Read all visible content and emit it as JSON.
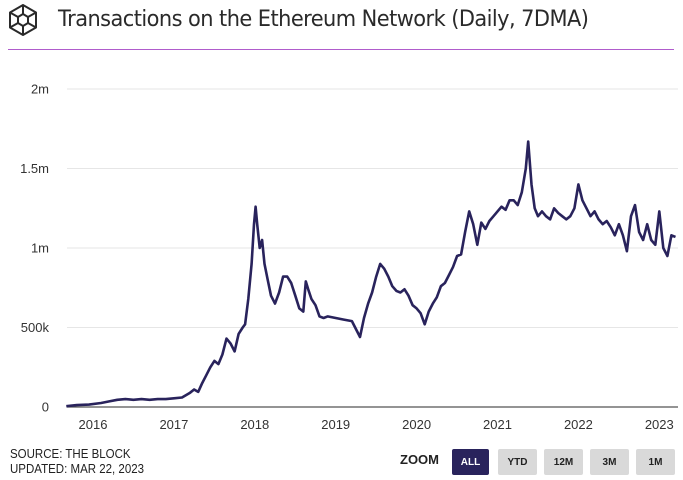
{
  "header": {
    "title": "Transactions on the Ethereum Network (Daily, 7DMA)",
    "logo_icon": "cube-logo-icon",
    "accent_color": "#b05ccc"
  },
  "footer": {
    "source": "SOURCE: THE BLOCK",
    "updated": "UPDATED: MAR 22, 2023"
  },
  "zoom": {
    "label": "ZOOM",
    "buttons": [
      {
        "label": "ALL",
        "active": true
      },
      {
        "label": "YTD",
        "active": false
      },
      {
        "label": "12M",
        "active": false
      },
      {
        "label": "3M",
        "active": false
      },
      {
        "label": "1M",
        "active": false
      }
    ],
    "active_color": "#29235c"
  },
  "chart_data": {
    "type": "line",
    "title": "Transactions on the Ethereum Network (Daily, 7DMA)",
    "xlabel": "",
    "ylabel": "",
    "xlim": [
      2015.67,
      2023.22
    ],
    "ylim": [
      0,
      2000000
    ],
    "grid": true,
    "line_color": "#29235c",
    "y_ticks": [
      {
        "value": 0,
        "label": "0"
      },
      {
        "value": 500000,
        "label": "500k"
      },
      {
        "value": 1000000,
        "label": "1m"
      },
      {
        "value": 1500000,
        "label": "1.5m"
      },
      {
        "value": 2000000,
        "label": "2m"
      }
    ],
    "x_ticks": [
      {
        "value": 2016,
        "label": "2016"
      },
      {
        "value": 2017,
        "label": "2017"
      },
      {
        "value": 2018,
        "label": "2018"
      },
      {
        "value": 2019,
        "label": "2019"
      },
      {
        "value": 2020,
        "label": "2020"
      },
      {
        "value": 2021,
        "label": "2021"
      },
      {
        "value": 2022,
        "label": "2022"
      },
      {
        "value": 2023,
        "label": "2023"
      }
    ],
    "series": [
      {
        "name": "Transactions (7DMA)",
        "x": [
          2015.67,
          2015.8,
          2015.95,
          2016.1,
          2016.2,
          2016.3,
          2016.4,
          2016.5,
          2016.6,
          2016.7,
          2016.8,
          2016.9,
          2017.0,
          2017.1,
          2017.2,
          2017.25,
          2017.3,
          2017.35,
          2017.4,
          2017.45,
          2017.5,
          2017.55,
          2017.6,
          2017.65,
          2017.7,
          2017.75,
          2017.8,
          2017.85,
          2017.88,
          2017.92,
          2017.96,
          2017.99,
          2018.01,
          2018.03,
          2018.06,
          2018.09,
          2018.12,
          2018.16,
          2018.2,
          2018.25,
          2018.3,
          2018.35,
          2018.4,
          2018.45,
          2018.5,
          2018.55,
          2018.6,
          2018.63,
          2018.66,
          2018.7,
          2018.75,
          2018.8,
          2018.85,
          2018.9,
          2019.0,
          2019.1,
          2019.2,
          2019.3,
          2019.35,
          2019.4,
          2019.45,
          2019.5,
          2019.55,
          2019.6,
          2019.65,
          2019.7,
          2019.75,
          2019.8,
          2019.85,
          2019.9,
          2019.95,
          2020.0,
          2020.05,
          2020.1,
          2020.15,
          2020.2,
          2020.25,
          2020.3,
          2020.35,
          2020.4,
          2020.45,
          2020.5,
          2020.55,
          2020.6,
          2020.65,
          2020.7,
          2020.75,
          2020.8,
          2020.85,
          2020.9,
          2020.95,
          2021.0,
          2021.05,
          2021.1,
          2021.15,
          2021.2,
          2021.25,
          2021.3,
          2021.35,
          2021.38,
          2021.42,
          2021.46,
          2021.5,
          2021.55,
          2021.6,
          2021.65,
          2021.7,
          2021.75,
          2021.8,
          2021.85,
          2021.9,
          2021.95,
          2022.0,
          2022.05,
          2022.1,
          2022.15,
          2022.2,
          2022.25,
          2022.3,
          2022.35,
          2022.4,
          2022.45,
          2022.5,
          2022.55,
          2022.6,
          2022.65,
          2022.7,
          2022.75,
          2022.8,
          2022.85,
          2022.9,
          2022.95,
          2023.0,
          2023.05,
          2023.1,
          2023.15,
          2023.2
        ],
        "y": [
          5000,
          12000,
          15000,
          25000,
          35000,
          45000,
          50000,
          45000,
          50000,
          45000,
          50000,
          50000,
          55000,
          60000,
          90000,
          110000,
          95000,
          150000,
          200000,
          250000,
          290000,
          270000,
          330000,
          430000,
          400000,
          350000,
          460000,
          500000,
          520000,
          680000,
          900000,
          1150000,
          1260000,
          1150000,
          1000000,
          1050000,
          900000,
          800000,
          700000,
          650000,
          720000,
          820000,
          820000,
          780000,
          700000,
          620000,
          600000,
          790000,
          740000,
          680000,
          640000,
          570000,
          560000,
          570000,
          560000,
          550000,
          540000,
          440000,
          560000,
          650000,
          720000,
          820000,
          900000,
          870000,
          820000,
          760000,
          730000,
          720000,
          740000,
          700000,
          640000,
          620000,
          590000,
          520000,
          600000,
          650000,
          690000,
          760000,
          780000,
          830000,
          880000,
          950000,
          960000,
          1100000,
          1230000,
          1150000,
          1020000,
          1160000,
          1120000,
          1170000,
          1200000,
          1230000,
          1260000,
          1240000,
          1300000,
          1300000,
          1270000,
          1350000,
          1500000,
          1670000,
          1400000,
          1250000,
          1200000,
          1230000,
          1200000,
          1180000,
          1250000,
          1220000,
          1200000,
          1180000,
          1200000,
          1250000,
          1400000,
          1300000,
          1250000,
          1200000,
          1230000,
          1180000,
          1150000,
          1170000,
          1130000,
          1080000,
          1150000,
          1080000,
          980000,
          1200000,
          1270000,
          1100000,
          1050000,
          1150000,
          1050000,
          1020000,
          1230000,
          1000000,
          950000,
          1080000,
          1070000
        ]
      }
    ]
  }
}
